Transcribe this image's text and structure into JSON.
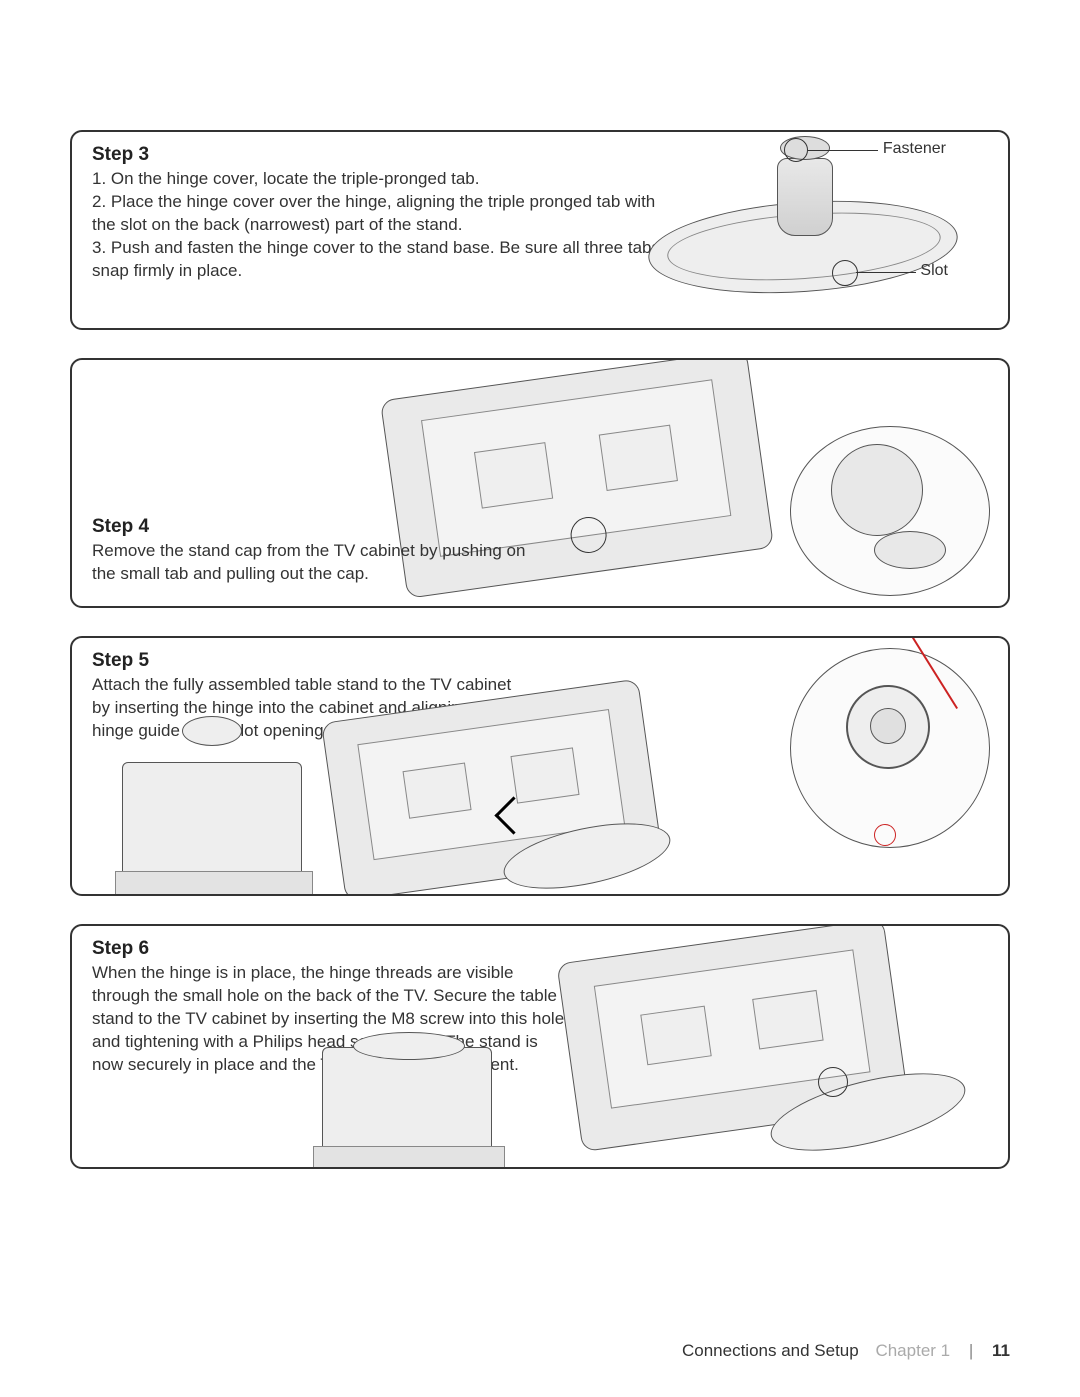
{
  "colors": {
    "text": "#333333",
    "border": "#333333",
    "illo_fill": "#eaeaea",
    "illo_stroke": "#555555",
    "accent_red": "#cc2222",
    "muted": "#aaaaaa",
    "background": "#ffffff"
  },
  "typography": {
    "family": "Arial",
    "title_size_pt": 14,
    "body_size_pt": 12
  },
  "step3": {
    "title": "Step 3",
    "items": [
      "1. On the hinge cover, locate the triple-pronged tab.",
      "2. Place the hinge cover over the hinge, aligning the triple pronged tab with the slot on the back (narrowest) part of the stand.",
      "3. Push and fasten the hinge cover to the stand base. Be sure all three tabs snap firmly in place."
    ],
    "labels": {
      "fastener": "Fastener",
      "slot": "Slot"
    }
  },
  "step4": {
    "title": "Step 4",
    "body": "Remove the stand cap from the TV cabinet by pushing on the small tab and pulling out the cap."
  },
  "step5": {
    "title": "Step 5",
    "body": "Attach the fully assembled table stand to the TV cabinet by inserting the hinge into the cabinet and aligning the hinge guide to the slot opening."
  },
  "step6": {
    "title": "Step 6",
    "body": "When the hinge is in place, the hinge threads are visible through the small hole on the back of the TV. Secure the table stand to the TV cabinet by inserting the M8 screw into this hole and tightening with a Philips head screwdriver. The stand is now securely in place and the TV is ready for placement."
  },
  "footer": {
    "section": "Connections and Setup",
    "chapter": "Chapter 1",
    "page": "11"
  }
}
